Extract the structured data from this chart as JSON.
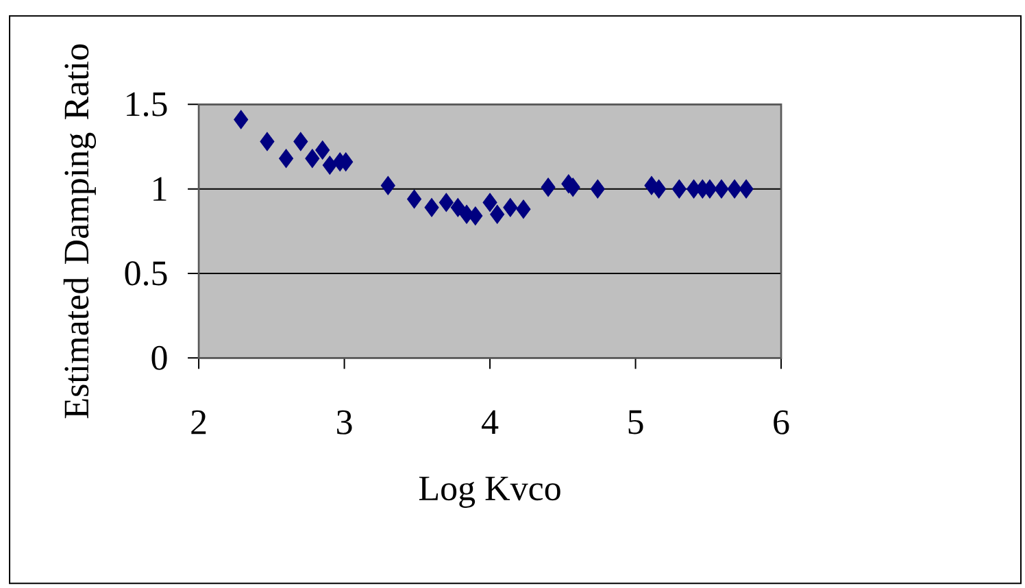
{
  "chart_data": {
    "type": "scatter",
    "xlabel": "Log Kvco",
    "ylabel": "Estimated Damping Ratio",
    "xlim": [
      2,
      6
    ],
    "ylim": [
      0,
      1.5
    ],
    "xticks": [
      2,
      3,
      4,
      5,
      6
    ],
    "yticks": [
      0,
      {
        "value": 0.5,
        "label": "0.5"
      },
      1,
      {
        "value": 1.5,
        "label": "1.5"
      }
    ],
    "grid": "y",
    "marker": "diamond",
    "series": [
      {
        "color": "#000080",
        "x": [
          2.29,
          2.47,
          2.6,
          2.7,
          2.78,
          2.85,
          2.9,
          2.97,
          3.01,
          3.3,
          3.48,
          3.6,
          3.7,
          3.78,
          3.84,
          3.9,
          4.0,
          4.05,
          4.14,
          4.23,
          4.4,
          4.54,
          4.57,
          4.74,
          5.11,
          5.16,
          5.3,
          5.4,
          5.46,
          5.51,
          5.59,
          5.68,
          5.76
        ],
        "values": [
          1.41,
          1.28,
          1.18,
          1.28,
          1.18,
          1.23,
          1.14,
          1.16,
          1.16,
          1.02,
          0.94,
          0.89,
          0.92,
          0.89,
          0.85,
          0.84,
          0.92,
          0.85,
          0.89,
          0.88,
          1.01,
          1.03,
          1.01,
          1.0,
          1.02,
          1.0,
          1.0,
          1.0,
          1.0,
          1.0,
          1.0,
          1.0,
          1.0
        ]
      }
    ]
  }
}
